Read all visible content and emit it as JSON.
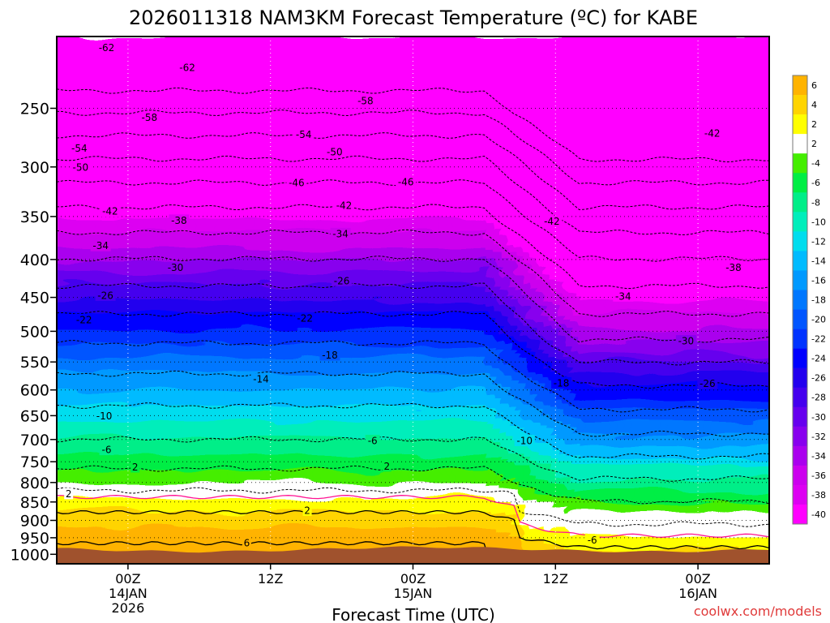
{
  "chart_data": {
    "type": "heatmap",
    "title": "2026011318 NAM3KM Forecast Temperature (ºC) for KABE",
    "xlabel": "Forecast Time (UTC)",
    "ylabel": "",
    "credit": "coolwx.com/models",
    "y_axis": {
      "units": "hPa",
      "scale": "log",
      "inverted": true,
      "range": [
        200,
        1030
      ],
      "ticks": [
        250,
        300,
        350,
        400,
        450,
        500,
        550,
        600,
        650,
        700,
        750,
        800,
        850,
        900,
        950,
        1000
      ]
    },
    "x_axis": {
      "units": "forecast hour",
      "range": [
        18,
        78
      ],
      "ticks": [
        {
          "hour": 24,
          "lines": [
            "00Z",
            "14JAN",
            "2026"
          ]
        },
        {
          "hour": 36,
          "lines": [
            "12Z"
          ]
        },
        {
          "hour": 48,
          "lines": [
            "00Z",
            "15JAN"
          ]
        },
        {
          "hour": 60,
          "lines": [
            "12Z"
          ]
        },
        {
          "hour": 72,
          "lines": [
            "00Z",
            "16JAN"
          ]
        }
      ]
    },
    "grid": true,
    "legend": "right colorbar",
    "colorbar": {
      "labels": [
        "6",
        "4",
        "2",
        "2",
        "-4",
        "-6",
        "-8",
        "-10",
        "-12",
        "-14",
        "-16",
        "-18",
        "-20",
        "-22",
        "-24",
        "-26",
        "-28",
        "-30",
        "-32",
        "-34",
        "-36",
        "-38",
        "-40"
      ],
      "colors": [
        "#ffb300",
        "#ffd400",
        "#ffff00",
        "#ffffff",
        "#44ee00",
        "#00ee44",
        "#00ee88",
        "#00eebb",
        "#00ddee",
        "#00bbff",
        "#0099ff",
        "#0077ff",
        "#0055ff",
        "#0033ff",
        "#0000ff",
        "#2200ee",
        "#4400ee",
        "#6600ee",
        "#8800ee",
        "#aa00ee",
        "#cc00ee",
        "#dd00f2",
        "#ff00ff"
      ]
    },
    "contour_labels": [
      {
        "t": 22.2,
        "p": 207,
        "v": -62
      },
      {
        "t": 29.0,
        "p": 220,
        "v": -62
      },
      {
        "t": 25.8,
        "p": 257,
        "v": -58
      },
      {
        "t": 44.0,
        "p": 244,
        "v": -58
      },
      {
        "t": 19.9,
        "p": 283,
        "v": -54
      },
      {
        "t": 38.8,
        "p": 271,
        "v": -54
      },
      {
        "t": 20.0,
        "p": 300,
        "v": -50
      },
      {
        "t": 41.4,
        "p": 286,
        "v": -50
      },
      {
        "t": 38.2,
        "p": 315,
        "v": -46
      },
      {
        "t": 47.4,
        "p": 314,
        "v": -46
      },
      {
        "t": 22.5,
        "p": 344,
        "v": -42
      },
      {
        "t": 42.2,
        "p": 338,
        "v": -42
      },
      {
        "t": 59.7,
        "p": 355,
        "v": -42
      },
      {
        "t": 73.2,
        "p": 270,
        "v": -42
      },
      {
        "t": 28.3,
        "p": 354,
        "v": -38
      },
      {
        "t": 75.0,
        "p": 410,
        "v": -38
      },
      {
        "t": 21.7,
        "p": 383,
        "v": -34
      },
      {
        "t": 41.9,
        "p": 369,
        "v": -34
      },
      {
        "t": 65.7,
        "p": 448,
        "v": -34
      },
      {
        "t": 28.0,
        "p": 410,
        "v": -30
      },
      {
        "t": 71.0,
        "p": 515,
        "v": -30
      },
      {
        "t": 22.1,
        "p": 447,
        "v": -26
      },
      {
        "t": 42.0,
        "p": 427,
        "v": -26
      },
      {
        "t": 72.8,
        "p": 588,
        "v": -26
      },
      {
        "t": 20.3,
        "p": 482,
        "v": -22
      },
      {
        "t": 38.9,
        "p": 480,
        "v": -22
      },
      {
        "t": 41.0,
        "p": 538,
        "v": -18
      },
      {
        "t": 60.5,
        "p": 587,
        "v": -18
      },
      {
        "t": 35.2,
        "p": 580,
        "v": -14
      },
      {
        "t": 22.0,
        "p": 650,
        "v": -10
      },
      {
        "t": 57.4,
        "p": 702,
        "v": -10
      },
      {
        "t": 22.2,
        "p": 722,
        "v": -6
      },
      {
        "t": 44.6,
        "p": 702,
        "v": -6
      },
      {
        "t": 63.1,
        "p": 956,
        "v": -6
      },
      {
        "t": 24.6,
        "p": 762,
        "v": 2
      },
      {
        "t": 45.8,
        "p": 760,
        "v": 2
      },
      {
        "t": 19.0,
        "p": 828,
        "v": 2
      },
      {
        "t": 39.1,
        "p": 872,
        "v": 2
      },
      {
        "t": 34.0,
        "p": 965,
        "v": 6
      }
    ]
  }
}
